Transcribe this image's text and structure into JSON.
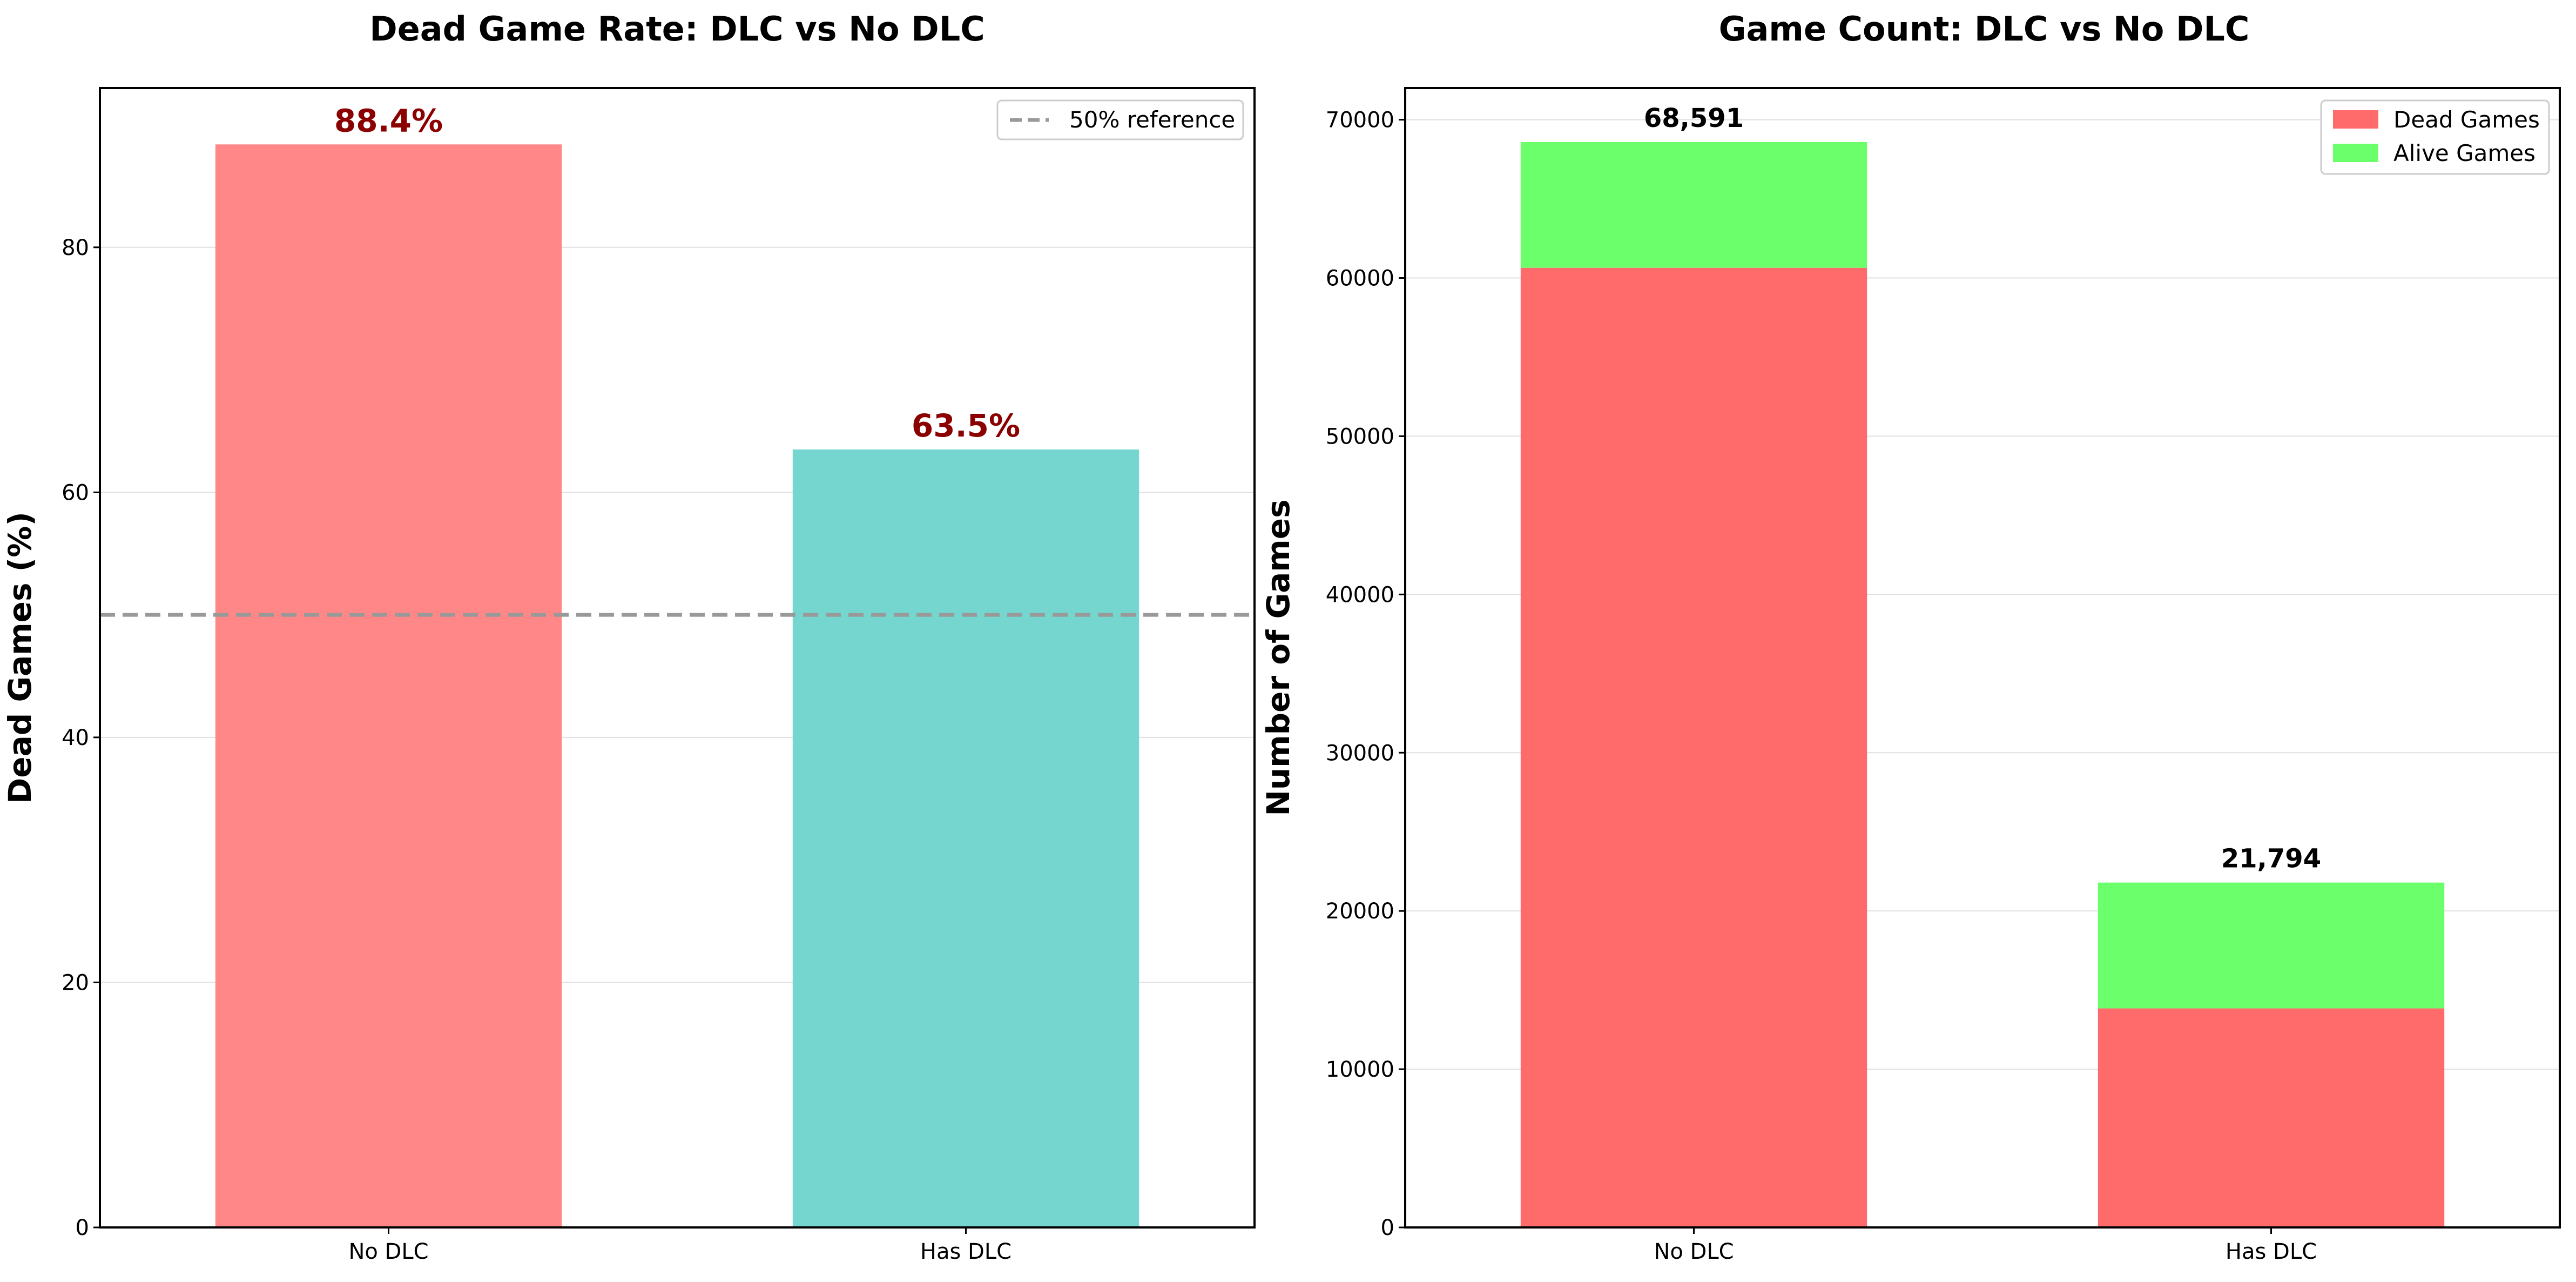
{
  "figure": {
    "background": "#ffffff",
    "grid_color": "#e0e0e0",
    "axis_color": "#000000",
    "reference_line_color": "#999999",
    "value_label_color": "#8b0000"
  },
  "chart_data": [
    {
      "type": "bar",
      "title": "Dead Game Rate: DLC vs No DLC",
      "xlabel": "",
      "ylabel": "Dead Games (%)",
      "categories": [
        "No DLC",
        "Has DLC"
      ],
      "values": [
        88.4,
        63.5
      ],
      "value_labels": [
        "88.4%",
        "63.5%"
      ],
      "bar_colors": [
        "#ff8787",
        "#74d6ce"
      ],
      "ylim": [
        0,
        93
      ],
      "yticks": [
        0,
        20,
        40,
        60,
        80
      ],
      "grid": "horizontal",
      "reference_line": {
        "value": 50,
        "label": "50% reference",
        "style": "dashed"
      },
      "legend": {
        "placement": "top-right",
        "entries": [
          "50% reference"
        ]
      }
    },
    {
      "type": "bar",
      "stacked": true,
      "title": "Game Count: DLC vs No DLC",
      "xlabel": "",
      "ylabel": "Number of Games",
      "categories": [
        "No DLC",
        "Has DLC"
      ],
      "series": [
        {
          "name": "Dead Games",
          "color": "#ff6b6b",
          "values": [
            60643,
            13842
          ]
        },
        {
          "name": "Alive Games",
          "color": "#6bff6b",
          "values": [
            7948,
            7952
          ]
        }
      ],
      "totals": [
        68591,
        21794
      ],
      "total_labels": [
        "68,591",
        "21,794"
      ],
      "ylim": [
        0,
        72000
      ],
      "yticks": [
        0,
        10000,
        20000,
        30000,
        40000,
        50000,
        60000,
        70000
      ],
      "grid": "horizontal",
      "legend": {
        "placement": "top-right",
        "entries": [
          "Dead Games",
          "Alive Games"
        ]
      }
    }
  ]
}
